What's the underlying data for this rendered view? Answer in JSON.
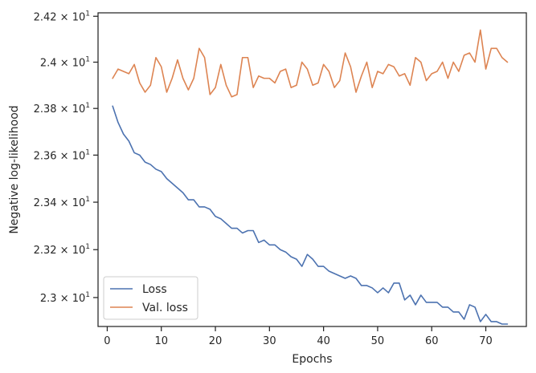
{
  "chart_data": {
    "type": "line",
    "xlabel": "Epochs",
    "ylabel": "Negative log-likelihood",
    "xlim": [
      -1.7,
      77.5
    ],
    "ylim": [
      22.88,
      24.215
    ],
    "x_ticks": [
      0,
      10,
      20,
      30,
      40,
      50,
      60,
      70
    ],
    "y_ticks": [
      {
        "value": 23.0,
        "label": "2.3 × 10",
        "exp": "1"
      },
      {
        "value": 23.2,
        "label": "2.32 × 10",
        "exp": "1"
      },
      {
        "value": 23.4,
        "label": "2.34 × 10",
        "exp": "1"
      },
      {
        "value": 23.6,
        "label": "2.36 × 10",
        "exp": "1"
      },
      {
        "value": 23.8,
        "label": "2.38 × 10",
        "exp": "1"
      },
      {
        "value": 24.0,
        "label": "2.4 × 10",
        "exp": "1"
      },
      {
        "value": 24.2,
        "label": "2.42 × 10",
        "exp": "1"
      }
    ],
    "y_scale": "log",
    "grid": false,
    "legend_position": "lower-left",
    "series": [
      {
        "name": "Loss",
        "color": "#4c72b0",
        "x": [
          1,
          2,
          3,
          4,
          5,
          6,
          7,
          8,
          9,
          10,
          11,
          12,
          13,
          14,
          15,
          16,
          17,
          18,
          19,
          20,
          21,
          22,
          23,
          24,
          25,
          26,
          27,
          28,
          29,
          30,
          31,
          32,
          33,
          34,
          35,
          36,
          37,
          38,
          39,
          40,
          41,
          42,
          43,
          44,
          45,
          46,
          47,
          48,
          49,
          50,
          51,
          52,
          53,
          54,
          55,
          56,
          57,
          58,
          59,
          60,
          61,
          62,
          63,
          64,
          65,
          66,
          67,
          68,
          69,
          70,
          71,
          72,
          73,
          74
        ],
        "values": [
          23.81,
          23.74,
          23.69,
          23.66,
          23.61,
          23.6,
          23.57,
          23.56,
          23.54,
          23.53,
          23.5,
          23.48,
          23.46,
          23.44,
          23.41,
          23.41,
          23.38,
          23.38,
          23.37,
          23.34,
          23.33,
          23.31,
          23.29,
          23.29,
          23.27,
          23.28,
          23.28,
          23.23,
          23.24,
          23.22,
          23.22,
          23.2,
          23.19,
          23.17,
          23.16,
          23.13,
          23.18,
          23.16,
          23.13,
          23.13,
          23.11,
          23.1,
          23.09,
          23.08,
          23.09,
          23.08,
          23.05,
          23.05,
          23.04,
          23.02,
          23.04,
          23.02,
          23.06,
          23.06,
          22.99,
          23.01,
          22.97,
          23.01,
          22.98,
          22.98,
          22.98,
          22.96,
          22.96,
          22.94,
          22.94,
          22.91,
          22.97,
          22.96,
          22.9,
          22.93,
          22.9,
          22.9,
          22.89,
          22.89
        ]
      },
      {
        "name": "Val. loss",
        "color": "#dd8452",
        "x": [
          1,
          2,
          3,
          4,
          5,
          6,
          7,
          8,
          9,
          10,
          11,
          12,
          13,
          14,
          15,
          16,
          17,
          18,
          19,
          20,
          21,
          22,
          23,
          24,
          25,
          26,
          27,
          28,
          29,
          30,
          31,
          32,
          33,
          34,
          35,
          36,
          37,
          38,
          39,
          40,
          41,
          42,
          43,
          44,
          45,
          46,
          47,
          48,
          49,
          50,
          51,
          52,
          53,
          54,
          55,
          56,
          57,
          58,
          59,
          60,
          61,
          62,
          63,
          64,
          65,
          66,
          67,
          68,
          69,
          70,
          71,
          72,
          73,
          74
        ],
        "values": [
          23.93,
          23.97,
          23.96,
          23.95,
          23.99,
          23.91,
          23.87,
          23.9,
          24.02,
          23.98,
          23.87,
          23.93,
          24.01,
          23.93,
          23.88,
          23.93,
          24.06,
          24.02,
          23.86,
          23.89,
          23.99,
          23.9,
          23.85,
          23.86,
          24.02,
          24.02,
          23.89,
          23.94,
          23.93,
          23.93,
          23.91,
          23.96,
          23.97,
          23.89,
          23.9,
          24.0,
          23.97,
          23.9,
          23.91,
          23.99,
          23.96,
          23.89,
          23.92,
          24.04,
          23.98,
          23.87,
          23.94,
          24.0,
          23.89,
          23.96,
          23.95,
          23.99,
          23.98,
          23.94,
          23.95,
          23.9,
          24.02,
          24.0,
          23.92,
          23.95,
          23.96,
          24.0,
          23.93,
          24.0,
          23.96,
          24.03,
          24.04,
          24.0,
          24.14,
          23.97,
          24.06,
          24.06,
          24.02,
          24.0
        ]
      }
    ]
  }
}
